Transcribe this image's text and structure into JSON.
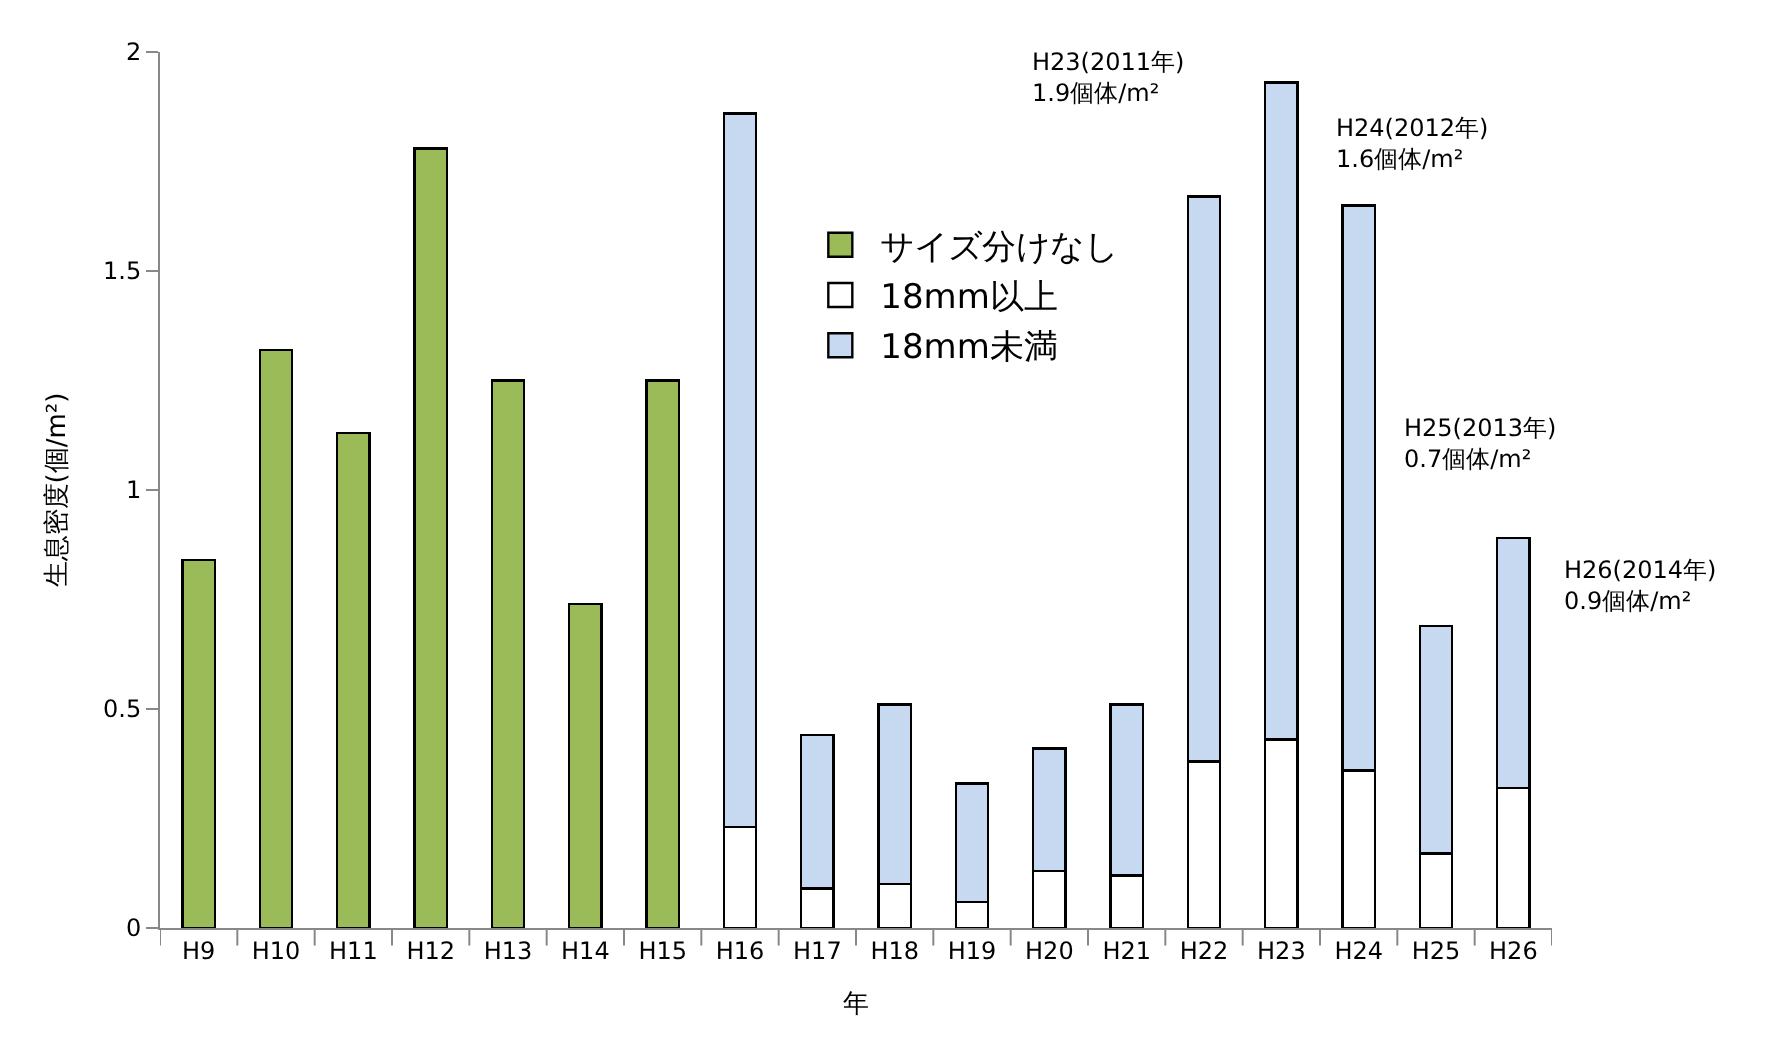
{
  "chart_data": {
    "type": "bar",
    "stacked": true,
    "xlabel": "年",
    "ylabel": "生息密度(個/m²)",
    "categories": [
      "H9",
      "H10",
      "H11",
      "H12",
      "H13",
      "H14",
      "H15",
      "H16",
      "H17",
      "H18",
      "H19",
      "H20",
      "H21",
      "H22",
      "H23",
      "H24",
      "H25",
      "H26"
    ],
    "series": [
      {
        "name": "サイズ分けなし",
        "color": "#9bbb59",
        "values": [
          0.84,
          1.32,
          1.13,
          1.78,
          1.25,
          0.74,
          1.25,
          null,
          null,
          null,
          null,
          null,
          null,
          null,
          null,
          null,
          null,
          null
        ]
      },
      {
        "name": "18mm以上",
        "color": "#ffffff",
        "values": [
          null,
          null,
          null,
          null,
          null,
          null,
          null,
          0.23,
          0.09,
          0.1,
          0.06,
          0.13,
          0.12,
          0.38,
          0.43,
          0.36,
          0.17,
          0.32
        ]
      },
      {
        "name": "18mm未満",
        "color": "#c6d9f1",
        "values": [
          null,
          null,
          null,
          null,
          null,
          null,
          null,
          1.63,
          0.35,
          0.41,
          0.27,
          0.28,
          0.39,
          1.29,
          1.5,
          1.29,
          0.52,
          0.57
        ]
      }
    ],
    "ylim": [
      0,
      2
    ],
    "yticks": [
      0,
      0.5,
      1,
      1.5,
      2
    ],
    "grid": false,
    "legend": "top",
    "annotations": [
      "H23(2011年)\n1.9個体/m²",
      "H24(2012年)\n1.6個体/m²",
      "H25(2013年)\n0.7個体/m²",
      "H26(2014年)\n0.9個体/m²"
    ]
  }
}
